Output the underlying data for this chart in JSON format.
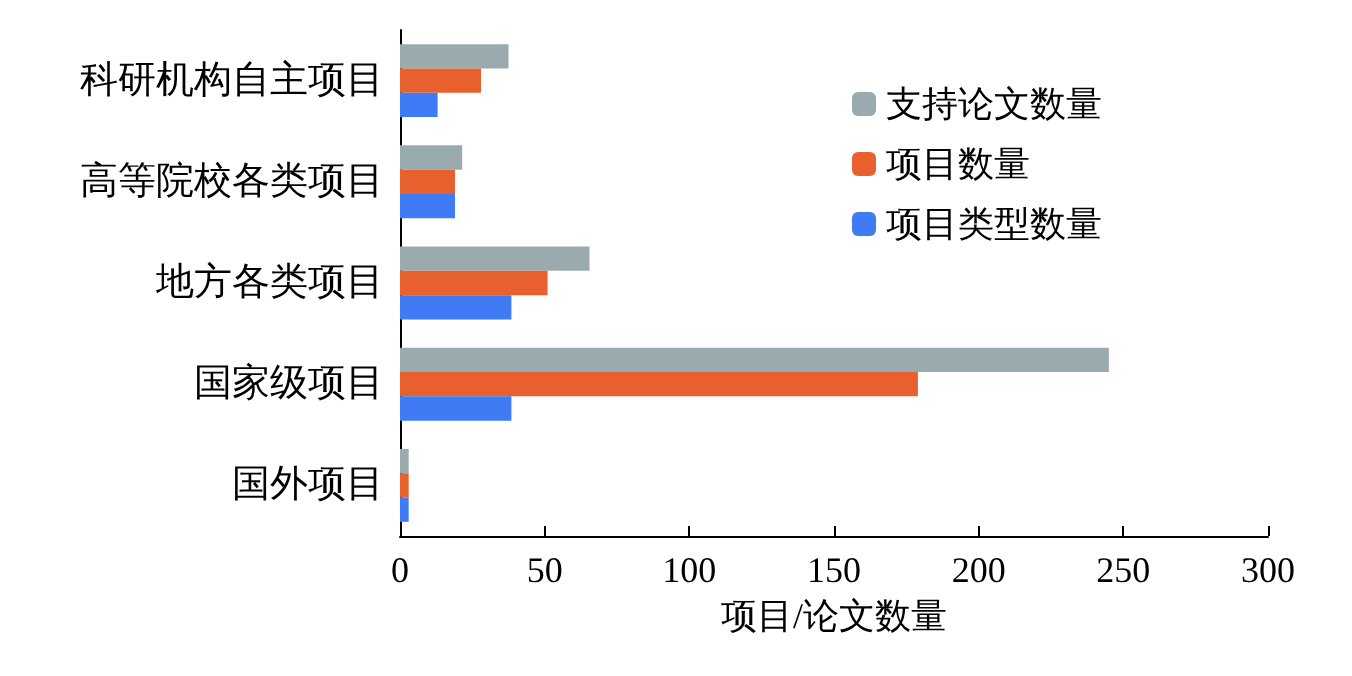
{
  "chart_data": {
    "type": "bar",
    "orientation": "horizontal",
    "xlabel": "项目/论文数量",
    "categories": [
      "科研机构自主项目",
      "高等院校各类项目",
      "地方各类项目",
      "国家级项目",
      "国外项目"
    ],
    "series": [
      {
        "name": "支持论文数量",
        "color": "#9aabb0",
        "values": [
          37.5,
          21.5,
          65.5,
          245,
          3
        ]
      },
      {
        "name": "项目数量",
        "color": "#e9602f",
        "values": [
          28,
          19,
          51,
          179,
          3
        ]
      },
      {
        "name": "项目类型数量",
        "color": "#3f7bf4",
        "values": [
          13,
          19,
          38.5,
          38.5,
          3
        ]
      }
    ],
    "xlim": [
      0,
      300
    ],
    "xticks": [
      0,
      50,
      100,
      150,
      200,
      250,
      300
    ],
    "grid": false,
    "legend": "top right"
  }
}
